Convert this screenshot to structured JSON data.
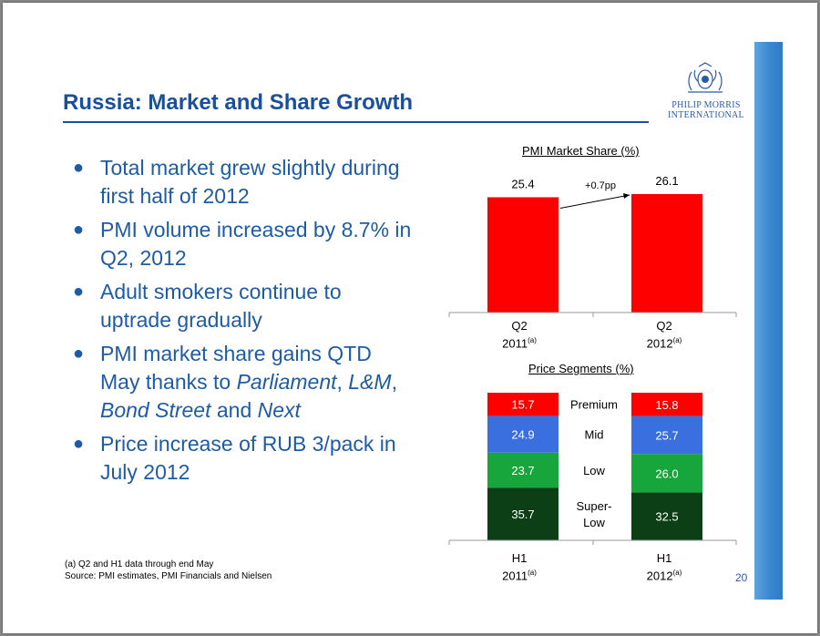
{
  "header": {
    "title": "Russia: Market and Share Growth",
    "logo_line1": "PHILIP MORRIS",
    "logo_line2": "INTERNATIONAL"
  },
  "bullets": [
    "Total market grew slightly during first half of 2012",
    "PMI volume increased by 8.7% in Q2, 2012",
    "Adult smokers continue to uptrade gradually",
    "PMI market share gains QTD May thanks to",
    "Price increase of RUB 3/pack in July 2012"
  ],
  "bullet4_parts": {
    "parliament": "Parliament",
    "comma": ",",
    "lm": "L&M",
    "comma2": ",",
    "bond": "Bond Street",
    "and": "and",
    "next": "Next"
  },
  "footnote": {
    "line1": "(a)  Q2 and H1 data through end May",
    "line2": "Source: PMI estimates, PMI Financials and Nielsen"
  },
  "page_number": "20",
  "colors": {
    "brand_blue": "#1a4f9c",
    "bar_red": "#ff0000",
    "premium": "#ff0000",
    "mid": "#3a6fe0",
    "low": "#17a63b",
    "super_low": "#0c3f16"
  },
  "chart_data": [
    {
      "type": "bar",
      "title": "PMI Market Share (%)",
      "categories": [
        "Q2 2011(a)",
        "Q2 2012(a)"
      ],
      "category_labels": [
        {
          "line1": "Q2",
          "line2": "2011",
          "sup": "(a)"
        },
        {
          "line1": "Q2",
          "line2": "2012",
          "sup": "(a)"
        }
      ],
      "values": [
        25.4,
        26.1
      ],
      "value_labels": [
        "25.4",
        "26.1"
      ],
      "annotation": "+0.7pp"
    },
    {
      "type": "bar",
      "stacked": true,
      "title": "Price Segments (%)",
      "categories": [
        "H1 2011(a)",
        "H1 2012(a)"
      ],
      "category_labels": [
        {
          "line1": "H1",
          "line2": "2011",
          "sup": "(a)"
        },
        {
          "line1": "H1",
          "line2": "2012",
          "sup": "(a)"
        }
      ],
      "series": [
        {
          "name": "Super-Low",
          "values": [
            35.7,
            32.5
          ],
          "labels": [
            "35.7",
            "32.5"
          ]
        },
        {
          "name": "Low",
          "values": [
            23.7,
            26.0
          ],
          "labels": [
            "23.7",
            "26.0"
          ]
        },
        {
          "name": "Mid",
          "values": [
            24.9,
            25.7
          ],
          "labels": [
            "24.9",
            "25.7"
          ]
        },
        {
          "name": "Premium",
          "values": [
            15.7,
            15.8
          ],
          "labels": [
            "15.7",
            "15.8"
          ]
        }
      ],
      "segment_names": [
        "Premium",
        "Mid",
        "Low",
        "Super-",
        "Low"
      ]
    }
  ]
}
